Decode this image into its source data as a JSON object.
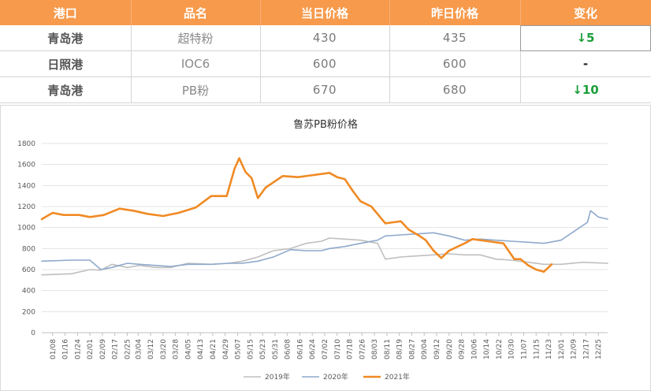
{
  "table": {
    "headers": [
      "港口",
      "品名",
      "当日价格",
      "昨日价格",
      "变化"
    ],
    "rows": [
      {
        "port": "青岛港",
        "product": "超特粉",
        "today": "430",
        "yesterday": "435",
        "change": "↓5"
      },
      {
        "port": "日照港",
        "product": "IOC6",
        "today": "600",
        "yesterday": "600",
        "change": "-"
      },
      {
        "port": "青岛港",
        "product": "PB粉",
        "today": "670",
        "yesterday": "680",
        "change": "↓10"
      }
    ],
    "colors": {
      "header_bg": "#f79a4b",
      "down": "#1a9e3a"
    }
  },
  "chart_data": {
    "type": "line",
    "title": "鲁苏PB粉价格",
    "ylim": [
      0,
      1800
    ],
    "yticks": [
      0,
      200,
      400,
      600,
      800,
      1000,
      1200,
      1400,
      1600,
      1800
    ],
    "xlim": [
      "01/01",
      "12/31"
    ],
    "x_tick_labels": [
      "01/08",
      "01/16",
      "01/24",
      "02/01",
      "02/09",
      "02/17",
      "02/25",
      "03/04",
      "03/12",
      "03/20",
      "03/28",
      "04/05",
      "04/13",
      "04/21",
      "04/29",
      "05/07",
      "05/15",
      "05/23",
      "05/31",
      "06/08",
      "06/16",
      "06/24",
      "07/02",
      "07/10",
      "07/18",
      "07/26",
      "08/03",
      "08/11",
      "08/19",
      "08/27",
      "09/04",
      "09/12",
      "09/20",
      "09/28",
      "10/06",
      "10/14",
      "10/22",
      "10/30",
      "11/07",
      "11/15",
      "11/23",
      "12/01",
      "12/09",
      "12/17",
      "12/25"
    ],
    "legend_position": "bottom",
    "series": [
      {
        "name": "2019年",
        "color": "#bfbfbf",
        "x": [
          "01/01",
          "01/20",
          "02/01",
          "02/08",
          "02/15",
          "02/25",
          "03/05",
          "03/15",
          "03/25",
          "04/05",
          "04/20",
          "05/01",
          "05/10",
          "05/20",
          "05/30",
          "06/10",
          "06/20",
          "06/30",
          "07/05",
          "07/15",
          "07/25",
          "08/05",
          "08/10",
          "08/20",
          "08/30",
          "09/10",
          "09/20",
          "09/30",
          "10/10",
          "10/20",
          "10/30",
          "11/10",
          "11/20",
          "12/01",
          "12/15",
          "12/31"
        ],
        "values": [
          550,
          560,
          600,
          595,
          650,
          620,
          640,
          620,
          620,
          660,
          650,
          660,
          680,
          720,
          780,
          800,
          850,
          870,
          900,
          890,
          880,
          850,
          700,
          720,
          730,
          740,
          750,
          740,
          740,
          700,
          690,
          670,
          650,
          650,
          670,
          660
        ]
      },
      {
        "name": "2020年",
        "color": "#8fa9cc",
        "x": [
          "01/01",
          "01/20",
          "02/01",
          "02/08",
          "02/15",
          "02/25",
          "03/05",
          "03/15",
          "03/25",
          "04/05",
          "04/20",
          "05/01",
          "05/10",
          "05/20",
          "05/30",
          "06/10",
          "06/20",
          "06/30",
          "07/05",
          "07/15",
          "07/25",
          "08/05",
          "08/10",
          "08/20",
          "08/30",
          "09/10",
          "09/20",
          "09/30",
          "10/10",
          "10/20",
          "10/30",
          "11/10",
          "11/20",
          "12/01",
          "12/10",
          "12/18",
          "12/20",
          "12/25",
          "12/31"
        ],
        "values": [
          680,
          690,
          690,
          600,
          620,
          660,
          650,
          640,
          630,
          650,
          650,
          660,
          660,
          680,
          720,
          790,
          780,
          780,
          800,
          820,
          850,
          880,
          920,
          930,
          940,
          950,
          920,
          880,
          890,
          880,
          870,
          860,
          850,
          880,
          970,
          1050,
          1160,
          1100,
          1080
        ]
      },
      {
        "name": "2021年",
        "color": "#f08a24",
        "x": [
          "01/01",
          "01/08",
          "01/15",
          "01/25",
          "02/01",
          "02/10",
          "02/20",
          "03/01",
          "03/10",
          "03/20",
          "03/30",
          "04/10",
          "04/20",
          "04/30",
          "05/05",
          "05/08",
          "05/12",
          "05/16",
          "05/20",
          "05/25",
          "05/30",
          "06/05",
          "06/15",
          "06/25",
          "07/05",
          "07/10",
          "07/15",
          "07/20",
          "07/25",
          "08/01",
          "08/10",
          "08/15",
          "08/20",
          "08/25",
          "09/01",
          "09/05",
          "09/10",
          "09/15",
          "09/20",
          "09/30",
          "10/05",
          "10/15",
          "10/25",
          "11/01",
          "11/05",
          "11/10",
          "11/15",
          "11/20",
          "11/25"
        ],
        "values": [
          1080,
          1140,
          1120,
          1120,
          1100,
          1120,
          1180,
          1160,
          1130,
          1110,
          1140,
          1190,
          1300,
          1300,
          1560,
          1660,
          1530,
          1470,
          1280,
          1380,
          1430,
          1490,
          1480,
          1500,
          1520,
          1480,
          1460,
          1350,
          1250,
          1200,
          1040,
          1050,
          1060,
          980,
          920,
          880,
          780,
          710,
          780,
          850,
          890,
          870,
          850,
          700,
          700,
          640,
          600,
          580,
          650
        ]
      }
    ]
  }
}
